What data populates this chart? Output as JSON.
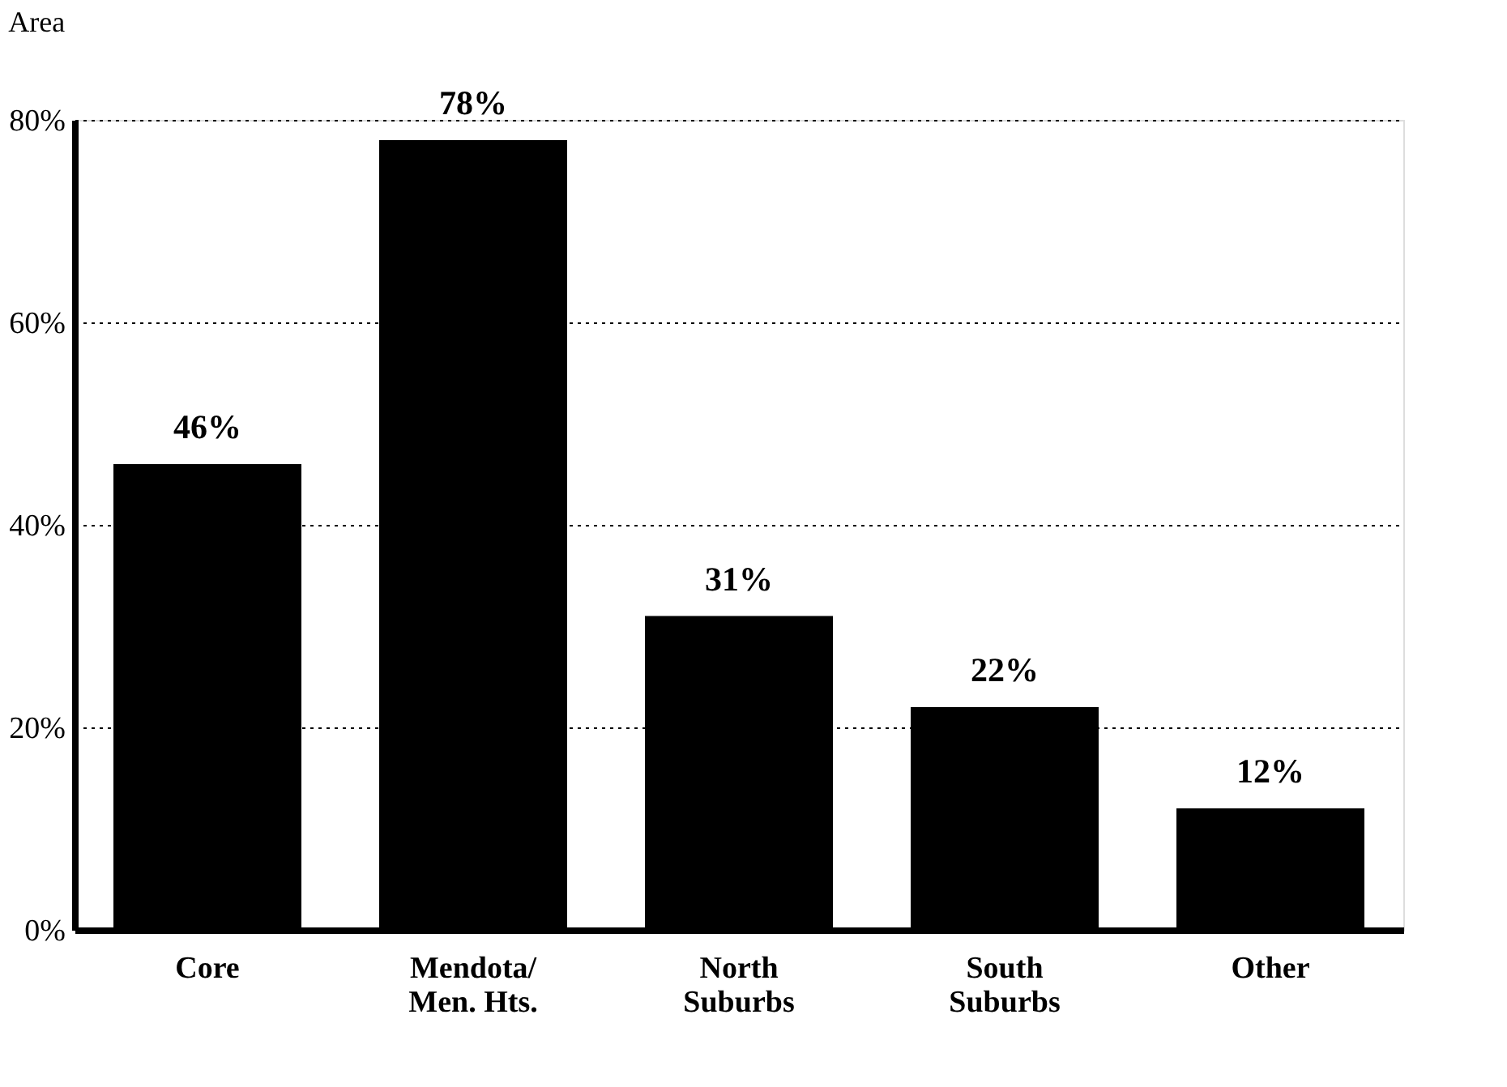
{
  "chart_data": {
    "type": "bar",
    "title": "Area",
    "categories": [
      "Core",
      "Mendota/\nMen. Hts.",
      "North\nSuburbs",
      "South\nSuburbs",
      "Other"
    ],
    "values": [
      46,
      78,
      31,
      22,
      12
    ],
    "value_labels": [
      "46%",
      "78%",
      "31%",
      "22%",
      "12%"
    ],
    "color": "#000000",
    "ylim": [
      0,
      80
    ],
    "yticks": [
      {
        "value": 0,
        "label": "0%"
      },
      {
        "value": 20,
        "label": "20%"
      },
      {
        "value": 40,
        "label": "40%"
      },
      {
        "value": 60,
        "label": "60%"
      },
      {
        "value": 80,
        "label": "80%"
      }
    ],
    "grid": "y"
  }
}
